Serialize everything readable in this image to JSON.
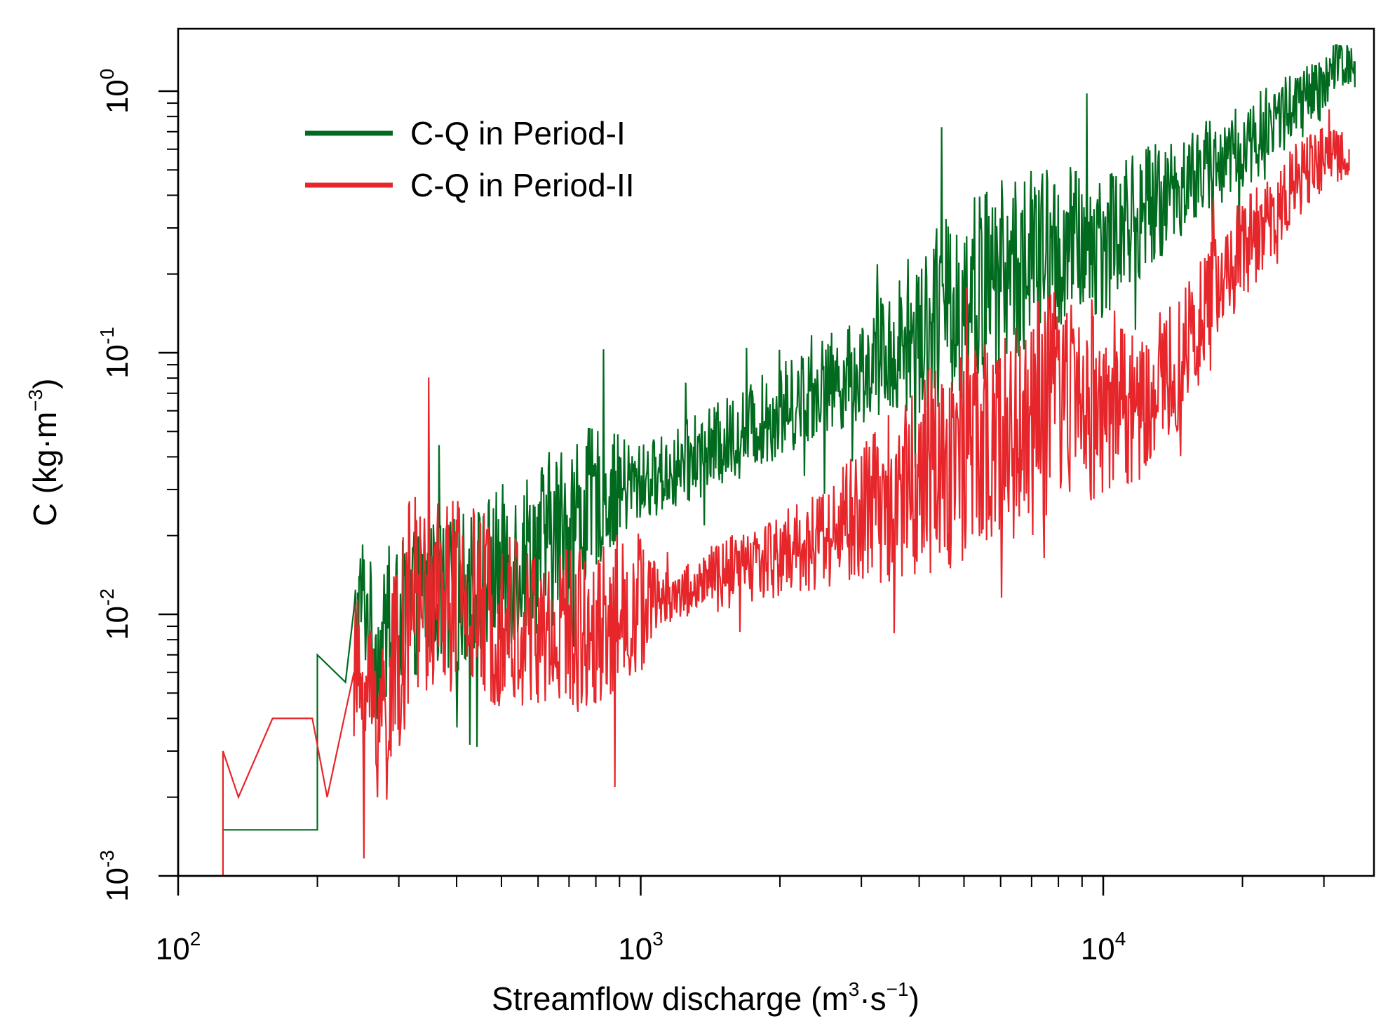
{
  "chart_data": {
    "type": "line",
    "title": "",
    "xlabel": {
      "main": "Streamflow discharge (m",
      "sup1": "3",
      "mid": "·s",
      "sup2": "−1",
      "end": ")"
    },
    "ylabel": {
      "main": "C (kg·m",
      "sup": "−3",
      "end": ")"
    },
    "x_scale": "log",
    "y_scale": "log",
    "xlim": [
      100,
      40000
    ],
    "ylim": [
      0.001,
      1.6
    ],
    "x_major_ticks": [
      {
        "value": 100,
        "base": "10",
        "exp": "2"
      },
      {
        "value": 1000,
        "base": "10",
        "exp": "3"
      },
      {
        "value": 10000,
        "base": "10",
        "exp": "4"
      }
    ],
    "y_major_ticks": [
      {
        "value": 0.001,
        "base": "10",
        "exp": "-3"
      },
      {
        "value": 0.01,
        "base": "10",
        "exp": "-2"
      },
      {
        "value": 0.1,
        "base": "10",
        "exp": "-1"
      },
      {
        "value": 1,
        "base": "10",
        "exp": "0"
      }
    ],
    "x_minor_ticks": [
      200,
      300,
      400,
      500,
      600,
      700,
      800,
      900,
      2000,
      3000,
      4000,
      5000,
      6000,
      7000,
      8000,
      9000,
      20000,
      30000
    ],
    "y_minor_ticks": [
      0.002,
      0.003,
      0.004,
      0.005,
      0.006,
      0.007,
      0.008,
      0.009,
      0.02,
      0.03,
      0.04,
      0.05,
      0.06,
      0.07,
      0.08,
      0.09,
      0.2,
      0.3,
      0.4,
      0.5,
      0.6,
      0.7,
      0.8,
      0.9
    ],
    "legend_position": "top-left",
    "series": [
      {
        "name": "C-Q in Period-I",
        "color": "#006b1e",
        "anchors": [
          [
            125,
            0.0015
          ],
          [
            200,
            0.0015
          ],
          [
            200,
            0.007
          ],
          [
            230,
            0.0055
          ],
          [
            250,
            0.012
          ],
          [
            270,
            0.007
          ],
          [
            300,
            0.01
          ],
          [
            350,
            0.012
          ],
          [
            400,
            0.012
          ],
          [
            500,
            0.015
          ],
          [
            600,
            0.018
          ],
          [
            700,
            0.022
          ],
          [
            800,
            0.028
          ],
          [
            900,
            0.03
          ],
          [
            1000,
            0.032
          ],
          [
            1200,
            0.036
          ],
          [
            1500,
            0.045
          ],
          [
            2000,
            0.06
          ],
          [
            2500,
            0.075
          ],
          [
            3000,
            0.085
          ],
          [
            4000,
            0.12
          ],
          [
            5000,
            0.16
          ],
          [
            6000,
            0.2
          ],
          [
            7000,
            0.23
          ],
          [
            8000,
            0.24
          ],
          [
            10000,
            0.27
          ],
          [
            12000,
            0.34
          ],
          [
            15000,
            0.45
          ],
          [
            20000,
            0.6
          ],
          [
            25000,
            0.85
          ],
          [
            30000,
            1.0
          ],
          [
            32000,
            1.3
          ],
          [
            35000,
            1.3
          ]
        ],
        "noise_range": [
          [
            125,
            0.0
          ],
          [
            240,
            0.25
          ],
          [
            700,
            0.35
          ],
          [
            1000,
            0.15
          ],
          [
            3000,
            0.2
          ],
          [
            5000,
            0.4
          ],
          [
            10000,
            0.3
          ],
          [
            15000,
            0.2
          ],
          [
            35000,
            0.12
          ]
        ]
      },
      {
        "name": "C-Q in Period-II",
        "color": "#e6262a",
        "anchors": [
          [
            125,
            0.001
          ],
          [
            125,
            0.003
          ],
          [
            135,
            0.002
          ],
          [
            160,
            0.004
          ],
          [
            195,
            0.004
          ],
          [
            210,
            0.002
          ],
          [
            240,
            0.006
          ],
          [
            280,
            0.004
          ],
          [
            320,
            0.012
          ],
          [
            400,
            0.012
          ],
          [
            500,
            0.01
          ],
          [
            600,
            0.0085
          ],
          [
            800,
            0.009
          ],
          [
            1000,
            0.011
          ],
          [
            1200,
            0.012
          ],
          [
            1500,
            0.014
          ],
          [
            2000,
            0.017
          ],
          [
            2500,
            0.02
          ],
          [
            3000,
            0.024
          ],
          [
            4000,
            0.035
          ],
          [
            5000,
            0.04
          ],
          [
            6000,
            0.045
          ],
          [
            7000,
            0.055
          ],
          [
            8000,
            0.07
          ],
          [
            10000,
            0.065
          ],
          [
            12000,
            0.06
          ],
          [
            15000,
            0.1
          ],
          [
            18000,
            0.2
          ],
          [
            22000,
            0.3
          ],
          [
            26000,
            0.45
          ],
          [
            30000,
            0.55
          ],
          [
            34000,
            0.6
          ]
        ],
        "noise_range": [
          [
            125,
            0.0
          ],
          [
            240,
            0.3
          ],
          [
            300,
            0.4
          ],
          [
            1000,
            0.3
          ],
          [
            1100,
            0.1
          ],
          [
            2500,
            0.2
          ],
          [
            4000,
            0.4
          ],
          [
            8000,
            0.45
          ],
          [
            12000,
            0.3
          ],
          [
            20000,
            0.2
          ],
          [
            34000,
            0.1
          ]
        ]
      }
    ]
  }
}
